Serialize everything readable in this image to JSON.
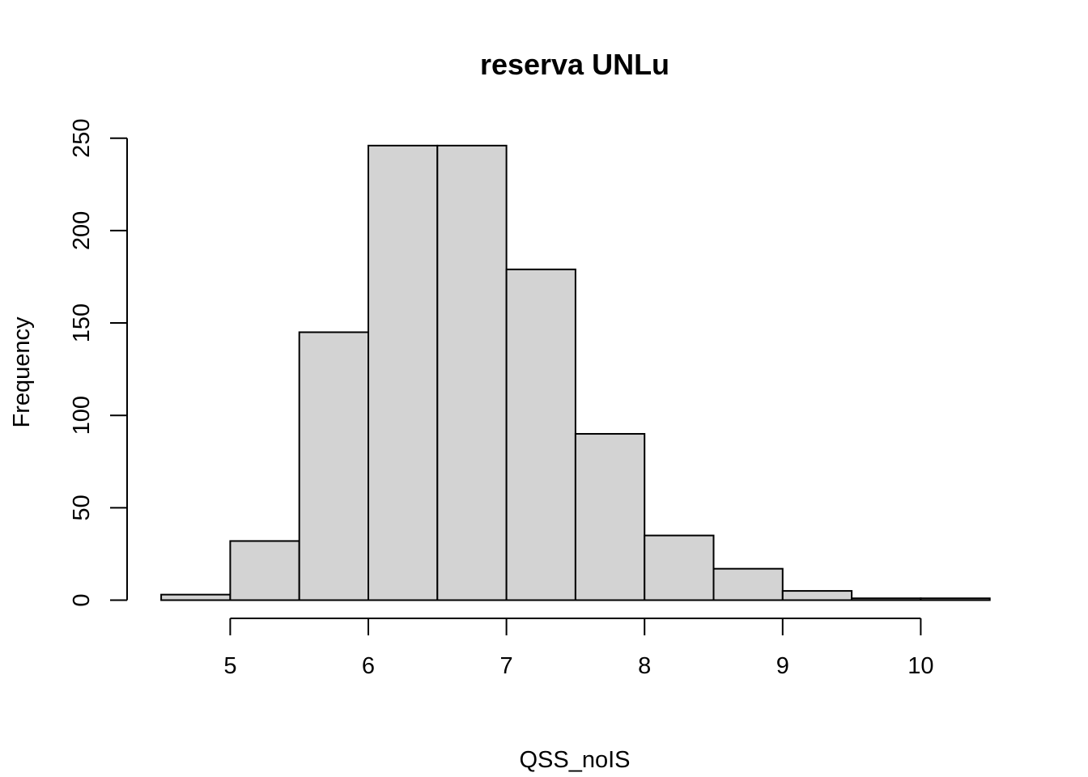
{
  "chart_data": {
    "type": "bar",
    "title": "reserva UNLu",
    "xlabel": "QSS_noIS",
    "ylabel": "Frequency",
    "bins": [
      {
        "start": 4.5,
        "end": 5.0,
        "count": 3
      },
      {
        "start": 5.0,
        "end": 5.5,
        "count": 32
      },
      {
        "start": 5.5,
        "end": 6.0,
        "count": 145
      },
      {
        "start": 6.0,
        "end": 6.5,
        "count": 246
      },
      {
        "start": 6.5,
        "end": 7.0,
        "count": 246
      },
      {
        "start": 7.0,
        "end": 7.5,
        "count": 179
      },
      {
        "start": 7.5,
        "end": 8.0,
        "count": 90
      },
      {
        "start": 8.0,
        "end": 8.5,
        "count": 35
      },
      {
        "start": 8.5,
        "end": 9.0,
        "count": 17
      },
      {
        "start": 9.0,
        "end": 9.5,
        "count": 5
      },
      {
        "start": 9.5,
        "end": 10.0,
        "count": 1
      },
      {
        "start": 10.0,
        "end": 10.5,
        "count": 1
      }
    ],
    "x_ticks": [
      "5",
      "6",
      "7",
      "8",
      "9",
      "10"
    ],
    "y_ticks": [
      "0",
      "50",
      "100",
      "150",
      "200",
      "250"
    ],
    "xlim": [
      4.5,
      10.5
    ],
    "ylim": [
      0,
      250
    ],
    "grid": false
  }
}
